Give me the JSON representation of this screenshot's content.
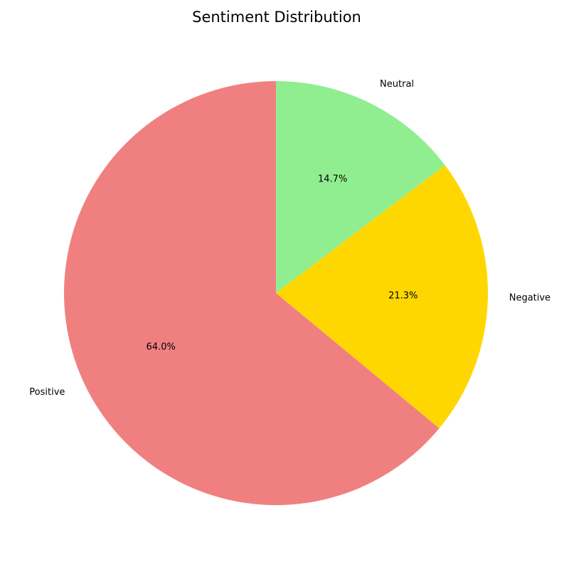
{
  "chart_data": {
    "type": "pie",
    "title": "Sentiment Distribution",
    "categories": [
      "Neutral",
      "Negative",
      "Positive"
    ],
    "values": [
      14.7,
      21.3,
      64.0
    ],
    "value_labels": [
      "14.7%",
      "21.3%",
      "64.0%"
    ],
    "colors": [
      "#90ee90",
      "#ffd700",
      "#f08080"
    ],
    "start_angle_deg": 90,
    "direction": "clockwise",
    "legend": "none"
  }
}
